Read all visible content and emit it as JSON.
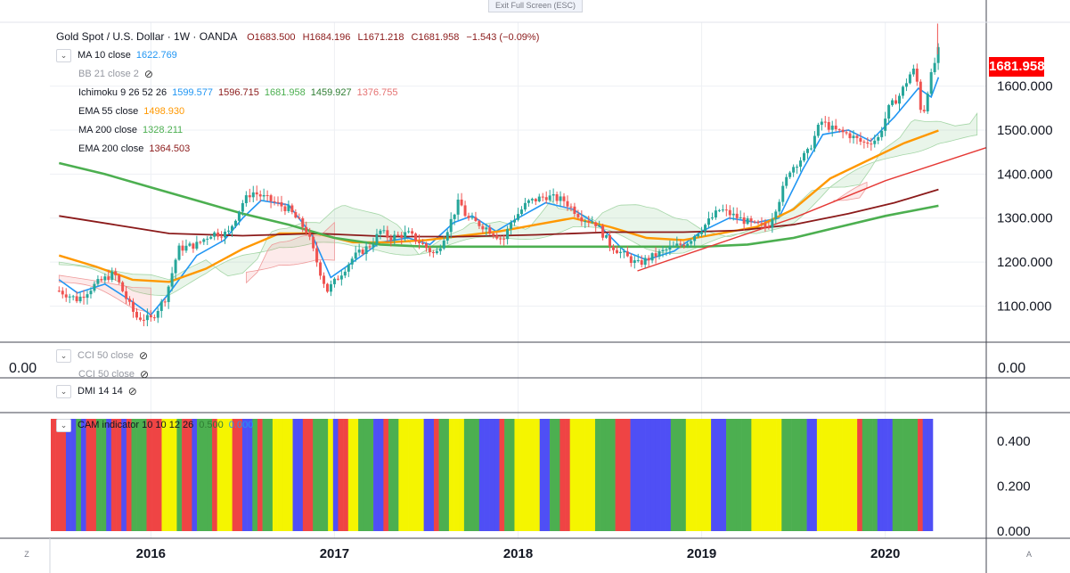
{
  "toolbar": {
    "exit_fullscreen": "Exit Full Screen (ESC)"
  },
  "header": {
    "symbol": "Gold Spot / U.S. Dollar · 1W · OANDA",
    "open": "O1683.500",
    "high": "H1684.196",
    "low": "L1671.218",
    "close": "C1681.958",
    "change": "−1.543 (−0.09%)"
  },
  "indicators": [
    {
      "label": "MA 10 close",
      "values": [
        {
          "v": "1622.769",
          "color": "#2196f3"
        }
      ]
    },
    {
      "label": "BB 21 close 2",
      "values": [],
      "hidden": true
    },
    {
      "label": "Ichimoku 9 26 52 26",
      "values": [
        {
          "v": "1599.577",
          "color": "#2196f3"
        },
        {
          "v": "1596.715",
          "color": "#8b1a1a"
        },
        {
          "v": "1681.958",
          "color": "#4caf50"
        },
        {
          "v": "1459.927",
          "color": "#2e7d32"
        },
        {
          "v": "1376.755",
          "color": "#e57373"
        }
      ]
    },
    {
      "label": "EMA 55 close",
      "values": [
        {
          "v": "1498.930",
          "color": "#ff9800"
        }
      ]
    },
    {
      "label": "MA 200 close",
      "values": [
        {
          "v": "1328.211",
          "color": "#4caf50"
        }
      ]
    },
    {
      "label": "EMA 200 close",
      "values": [
        {
          "v": "1364.503",
          "color": "#8b1a1a"
        }
      ]
    }
  ],
  "cci_panel": {
    "labels": [
      "CCI 50 close",
      "CCI 50 close"
    ],
    "left_value": "0.00",
    "right_value": "0.00"
  },
  "dmi_panel": {
    "label": "DMI 14 14"
  },
  "cam_panel": {
    "label": "CAM indicator 10 10 12 26",
    "v1": "0.500",
    "v2": "0.000"
  },
  "last_price": "1681.958",
  "colors": {
    "up": "#26a69a",
    "down": "#ef5350",
    "ma10": "#2196f3",
    "ema55": "#ff9800",
    "ma200": "#4caf50",
    "ema200": "#8b1a1a",
    "trend": "#e53935",
    "cam_red": "#ef4444",
    "cam_blue": "#4f4ff5",
    "cam_green": "#4caf50",
    "cam_yellow": "#f5f500"
  },
  "corner_left": "Z",
  "corner_right": "A",
  "chart_data": [
    {
      "type": "line",
      "title": "Gold Spot / U.S. Dollar · 1W · OANDA",
      "xlabel": "",
      "ylabel": "",
      "x_ticks": [
        "2016",
        "2017",
        "2018",
        "2019",
        "2020"
      ],
      "y_ticks": [
        "1100.000",
        "1200.000",
        "1300.000",
        "1400.000",
        "1500.000",
        "1600.000"
      ],
      "ylim": [
        1020,
        1745
      ],
      "xlim": [
        2015.45,
        2020.55
      ],
      "grid": true,
      "price_anchors": [
        [
          2015.5,
          1135
        ],
        [
          2015.6,
          1115
        ],
        [
          2015.7,
          1150
        ],
        [
          2015.8,
          1175
        ],
        [
          2015.88,
          1105
        ],
        [
          2015.92,
          1075
        ],
        [
          2016.0,
          1070
        ],
        [
          2016.08,
          1120
        ],
        [
          2016.15,
          1230
        ],
        [
          2016.25,
          1240
        ],
        [
          2016.33,
          1265
        ],
        [
          2016.42,
          1265
        ],
        [
          2016.5,
          1335
        ],
        [
          2016.55,
          1360
        ],
        [
          2016.65,
          1340
        ],
        [
          2016.75,
          1320
        ],
        [
          2016.85,
          1270
        ],
        [
          2016.92,
          1180
        ],
        [
          2016.96,
          1135
        ],
        [
          2017.0,
          1155
        ],
        [
          2017.1,
          1210
        ],
        [
          2017.2,
          1240
        ],
        [
          2017.25,
          1270
        ],
        [
          2017.3,
          1255
        ],
        [
          2017.4,
          1265
        ],
        [
          2017.48,
          1240
        ],
        [
          2017.55,
          1215
        ],
        [
          2017.62,
          1280
        ],
        [
          2017.68,
          1340
        ],
        [
          2017.72,
          1300
        ],
        [
          2017.82,
          1280
        ],
        [
          2017.92,
          1250
        ],
        [
          2017.96,
          1290
        ],
        [
          2018.05,
          1335
        ],
        [
          2018.15,
          1350
        ],
        [
          2018.25,
          1340
        ],
        [
          2018.35,
          1300
        ],
        [
          2018.42,
          1290
        ],
        [
          2018.5,
          1240
        ],
        [
          2018.58,
          1215
        ],
        [
          2018.65,
          1195
        ],
        [
          2018.72,
          1210
        ],
        [
          2018.82,
          1230
        ],
        [
          2018.92,
          1245
        ],
        [
          2019.02,
          1285
        ],
        [
          2019.1,
          1320
        ],
        [
          2019.2,
          1300
        ],
        [
          2019.28,
          1285
        ],
        [
          2019.36,
          1280
        ],
        [
          2019.42,
          1340
        ],
        [
          2019.48,
          1410
        ],
        [
          2019.58,
          1450
        ],
        [
          2019.65,
          1520
        ],
        [
          2019.72,
          1500
        ],
        [
          2019.8,
          1490
        ],
        [
          2019.88,
          1470
        ],
        [
          2019.96,
          1480
        ],
        [
          2020.02,
          1550
        ],
        [
          2020.08,
          1580
        ],
        [
          2020.15,
          1640
        ],
        [
          2020.18,
          1600
        ],
        [
          2020.2,
          1520
        ],
        [
          2020.23,
          1590
        ],
        [
          2020.26,
          1640
        ],
        [
          2020.29,
          1682
        ]
      ],
      "series": [
        {
          "name": "MA 10 close",
          "color": "#2196f3",
          "points": [
            [
              2015.5,
              1160
            ],
            [
              2015.6,
              1130
            ],
            [
              2015.75,
              1150
            ],
            [
              2015.9,
              1110
            ],
            [
              2016.0,
              1080
            ],
            [
              2016.1,
              1130
            ],
            [
              2016.25,
              1215
            ],
            [
              2016.4,
              1250
            ],
            [
              2016.5,
              1300
            ],
            [
              2016.6,
              1340
            ],
            [
              2016.75,
              1330
            ],
            [
              2016.88,
              1260
            ],
            [
              2016.98,
              1165
            ],
            [
              2017.1,
              1200
            ],
            [
              2017.25,
              1245
            ],
            [
              2017.4,
              1255
            ],
            [
              2017.52,
              1240
            ],
            [
              2017.65,
              1290
            ],
            [
              2017.75,
              1305
            ],
            [
              2017.88,
              1270
            ],
            [
              2018.0,
              1300
            ],
            [
              2018.15,
              1335
            ],
            [
              2018.3,
              1320
            ],
            [
              2018.45,
              1280
            ],
            [
              2018.58,
              1225
            ],
            [
              2018.7,
              1205
            ],
            [
              2018.85,
              1225
            ],
            [
              2019.0,
              1270
            ],
            [
              2019.15,
              1300
            ],
            [
              2019.3,
              1290
            ],
            [
              2019.42,
              1300
            ],
            [
              2019.55,
              1410
            ],
            [
              2019.66,
              1490
            ],
            [
              2019.8,
              1500
            ],
            [
              2019.92,
              1475
            ],
            [
              2020.05,
              1530
            ],
            [
              2020.18,
              1595
            ],
            [
              2020.25,
              1575
            ],
            [
              2020.29,
              1620
            ]
          ]
        },
        {
          "name": "EMA 55 close",
          "color": "#ff9800",
          "points": [
            [
              2015.5,
              1215
            ],
            [
              2015.7,
              1190
            ],
            [
              2015.9,
              1160
            ],
            [
              2016.1,
              1155
            ],
            [
              2016.3,
              1185
            ],
            [
              2016.5,
              1230
            ],
            [
              2016.7,
              1265
            ],
            [
              2016.9,
              1265
            ],
            [
              2017.1,
              1245
            ],
            [
              2017.3,
              1245
            ],
            [
              2017.5,
              1250
            ],
            [
              2017.7,
              1260
            ],
            [
              2017.9,
              1270
            ],
            [
              2018.1,
              1285
            ],
            [
              2018.3,
              1300
            ],
            [
              2018.5,
              1280
            ],
            [
              2018.7,
              1255
            ],
            [
              2018.9,
              1250
            ],
            [
              2019.1,
              1265
            ],
            [
              2019.3,
              1280
            ],
            [
              2019.5,
              1320
            ],
            [
              2019.7,
              1390
            ],
            [
              2019.9,
              1430
            ],
            [
              2020.1,
              1470
            ],
            [
              2020.29,
              1499
            ]
          ]
        },
        {
          "name": "EMA 200 close",
          "color": "#8b1a1a",
          "points": [
            [
              2015.5,
              1305
            ],
            [
              2015.8,
              1285
            ],
            [
              2016.1,
              1265
            ],
            [
              2016.5,
              1260
            ],
            [
              2016.9,
              1265
            ],
            [
              2017.3,
              1258
            ],
            [
              2017.7,
              1258
            ],
            [
              2018.1,
              1262
            ],
            [
              2018.5,
              1268
            ],
            [
              2018.9,
              1268
            ],
            [
              2019.2,
              1272
            ],
            [
              2019.5,
              1285
            ],
            [
              2019.8,
              1310
            ],
            [
              2020.05,
              1335
            ],
            [
              2020.29,
              1365
            ]
          ]
        },
        {
          "name": "MA 200 close",
          "color": "#4caf50",
          "points": [
            [
              2015.5,
              1425
            ],
            [
              2015.75,
              1400
            ],
            [
              2016.0,
              1370
            ],
            [
              2016.25,
              1340
            ],
            [
              2016.5,
              1310
            ],
            [
              2016.75,
              1285
            ],
            [
              2017.0,
              1255
            ],
            [
              2017.25,
              1240
            ],
            [
              2017.5,
              1235
            ],
            [
              2017.75,
              1235
            ],
            [
              2018.0,
              1235
            ],
            [
              2018.5,
              1235
            ],
            [
              2019.0,
              1235
            ],
            [
              2019.25,
              1240
            ],
            [
              2019.5,
              1255
            ],
            [
              2019.75,
              1280
            ],
            [
              2020.0,
              1305
            ],
            [
              2020.29,
              1328
            ]
          ]
        },
        {
          "name": "Trendline",
          "color": "#e53935",
          "points": [
            [
              2018.65,
              1180
            ],
            [
              2019.5,
              1300
            ],
            [
              2020.0,
              1385
            ],
            [
              2020.55,
              1460
            ]
          ]
        }
      ]
    },
    {
      "type": "bar",
      "title": "CAM indicator 10 10 12 26",
      "y_ticks": [
        "0.000",
        "0.200",
        "0.400"
      ],
      "ylim": [
        0,
        0.5
      ],
      "legend_values": [
        "0.500",
        "0.000"
      ],
      "color_sequence": "RRRBBGBRRGGBRRBRGGGRRRYYYGRRBGGGRYYYRRBBGRGGYYYYBBRRGGGYBRRYYGGGBBRGGYYYYYBBRGGYYYGGGBBBBRGGYYYYYBBGGRRYYYYYGGGGRRRBBBBBBBBGGGYYYYYBBBGGGGGYYYYYYGGGGGBBYYYYYYYYRGGGBBBGGGGGRBB",
      "color_key": {
        "R": "red",
        "B": "blue",
        "G": "green",
        "Y": "yellow"
      },
      "bar_value": 0.5
    }
  ]
}
